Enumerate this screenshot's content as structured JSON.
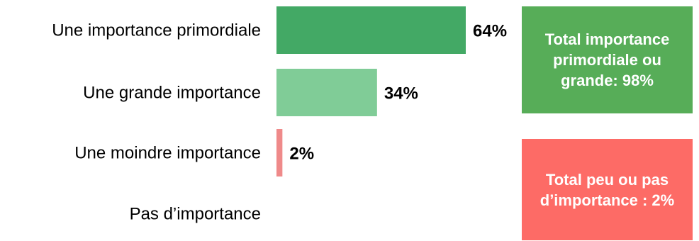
{
  "chart_data": {
    "type": "bar",
    "orientation": "horizontal",
    "categories": [
      "Une importance primordiale",
      "Une grande importance",
      "Une moindre importance",
      "Pas d’importance"
    ],
    "values": [
      64,
      34,
      2,
      0
    ],
    "value_labels": [
      "64%",
      "34%",
      "2%",
      ""
    ],
    "xlim": [
      0,
      64
    ],
    "grid": false,
    "bar_colors": [
      "#43a965",
      "#80cc97",
      "#ef8a8a",
      "#ef8a8a"
    ]
  },
  "summary": {
    "high": {
      "label": "Total importance primordiale ou grande: 98%",
      "color": "#57ad58"
    },
    "low": {
      "label": "Total peu ou pas d’importance : 2%",
      "color": "#fd6b66"
    }
  }
}
